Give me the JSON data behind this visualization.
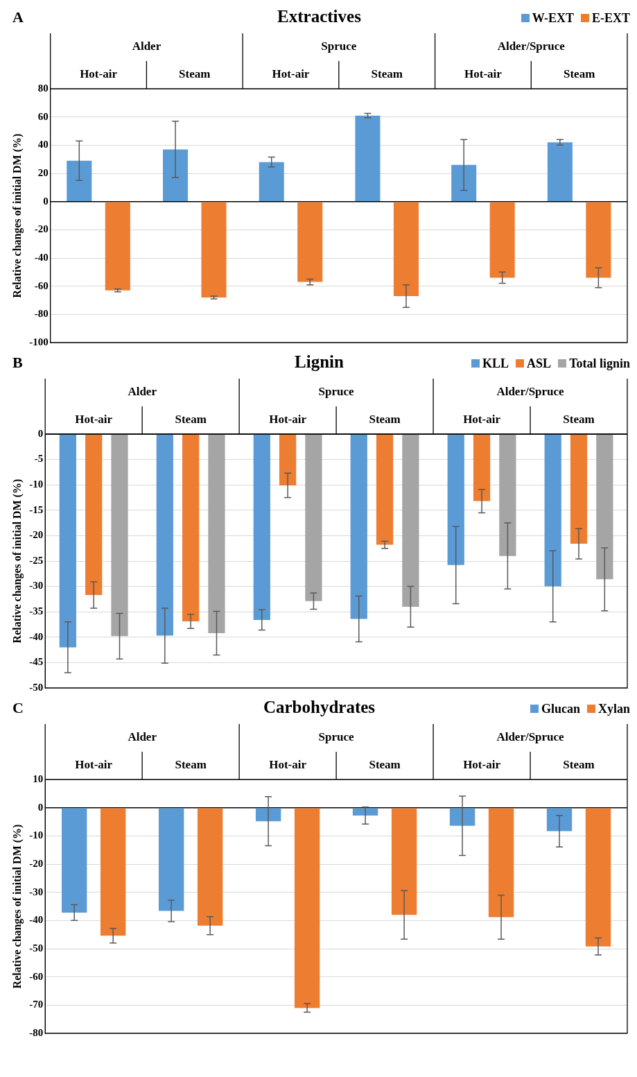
{
  "chart_data": [
    {
      "type": "bar",
      "title": "Extractives",
      "annotations": [
        "A",
        "Alder",
        "Spruce",
        "Alder/Spruce"
      ],
      "ylabel": "Relative changes of initial DM (%)",
      "categories": [
        "Hot-air",
        "Steam",
        "Hot-air",
        "Steam",
        "Hot-air",
        "Steam"
      ],
      "ylim": [
        -100,
        80
      ],
      "yticks": [
        -100,
        -80,
        -60,
        -40,
        -20,
        0,
        20,
        40,
        60,
        80
      ],
      "grid": "y",
      "legend": "top right",
      "series": [
        {
          "name": "W-EXT",
          "color": "#5b9bd5",
          "values": [
            29,
            37,
            28,
            61,
            26,
            42
          ],
          "errors": [
            14,
            20,
            3.5,
            1.5,
            18,
            2
          ]
        },
        {
          "name": "E-EXT",
          "color": "#ed7d31",
          "values": [
            -63,
            -68,
            -57,
            -67,
            -54,
            -54
          ],
          "errors": [
            1,
            1,
            2,
            8,
            4,
            7
          ]
        }
      ]
    },
    {
      "type": "bar",
      "title": "Lignin",
      "annotations": [
        "B",
        "Alder",
        "Spruce",
        "Alder/Spruce"
      ],
      "ylabel": "Relative changes of initial DM (%)",
      "categories": [
        "Hot-air",
        "Steam",
        "Hot-air",
        "Steam",
        "Hot-air",
        "Steam"
      ],
      "ylim": [
        -50,
        0
      ],
      "yticks": [
        -50,
        -45,
        -40,
        -35,
        -30,
        -25,
        -20,
        -15,
        -10,
        -5,
        0
      ],
      "grid": "y",
      "legend": "top right",
      "series": [
        {
          "name": "KLL",
          "color": "#5b9bd5",
          "values": [
            -42,
            -39.7,
            -36.6,
            -36.4,
            -25.8,
            -30
          ],
          "errors": [
            5,
            5.4,
            2,
            4.5,
            7.6,
            7
          ]
        },
        {
          "name": "ASL",
          "color": "#ed7d31",
          "values": [
            -31.7,
            -36.9,
            -10.1,
            -21.8,
            -13.2,
            -21.6
          ],
          "errors": [
            2.6,
            1.4,
            2.4,
            0.7,
            2.3,
            3
          ]
        },
        {
          "name": "Total lignin",
          "color": "#a5a5a5",
          "values": [
            -39.8,
            -39.2,
            -32.9,
            -34,
            -24,
            -28.6
          ],
          "errors": [
            4.5,
            4.3,
            1.6,
            4,
            6.5,
            6.2
          ]
        }
      ]
    },
    {
      "type": "bar",
      "title": "Carbohydrates",
      "annotations": [
        "C",
        "Alder",
        "Spruce",
        "Alder/Spruce"
      ],
      "ylabel": "Relative changes of initial DM (%)",
      "categories": [
        "Hot-air",
        "Steam",
        "Hot-air",
        "Steam",
        "Hot-air",
        "Steam"
      ],
      "ylim": [
        -80,
        10
      ],
      "yticks": [
        -80,
        -70,
        -60,
        -50,
        -40,
        -30,
        -20,
        -10,
        0,
        10
      ],
      "grid": "y",
      "legend": "top right",
      "series": [
        {
          "name": "Glucan",
          "color": "#5b9bd5",
          "values": [
            -37.2,
            -36.6,
            -4.8,
            -2.8,
            -6.4,
            -8.3
          ],
          "errors": [
            2.8,
            3.8,
            8.7,
            3,
            10.5,
            5.6
          ]
        },
        {
          "name": "Xylan",
          "color": "#ed7d31",
          "values": [
            -45.4,
            -41.8,
            -71,
            -38,
            -38.8,
            -49.2
          ],
          "errors": [
            2.6,
            3.2,
            1.5,
            8.6,
            7.8,
            3
          ]
        }
      ]
    }
  ]
}
